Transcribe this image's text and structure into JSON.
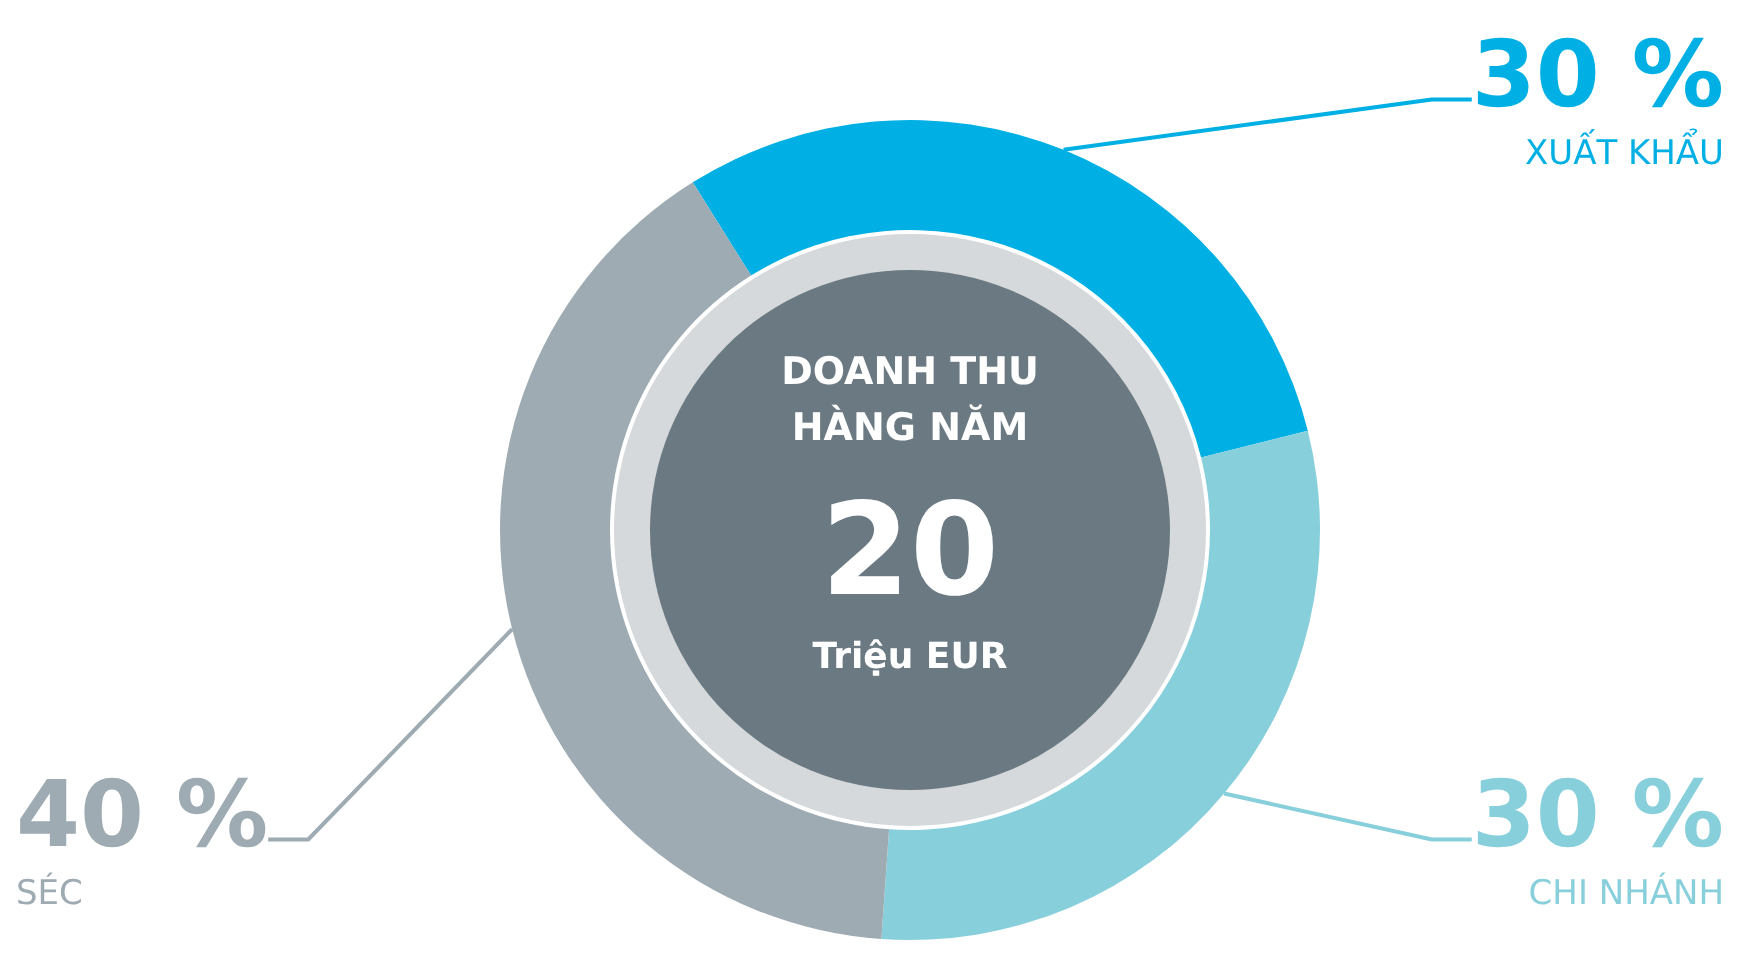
{
  "chart_data": {
    "type": "donut",
    "title": "DOANH THU HÀNG NĂM",
    "annotations": [
      "20",
      "Triệu EUR"
    ],
    "categories": [
      "XUẤT KHẨU",
      "CHI NHÁNH",
      "SÉC"
    ],
    "values": [
      30,
      30,
      40
    ],
    "value_labels": [
      "30 %",
      "30 %",
      "40 %"
    ],
    "colors": [
      "#00b0e4",
      "#88cfdc",
      "#9eabb2"
    ],
    "legend": false
  }
}
